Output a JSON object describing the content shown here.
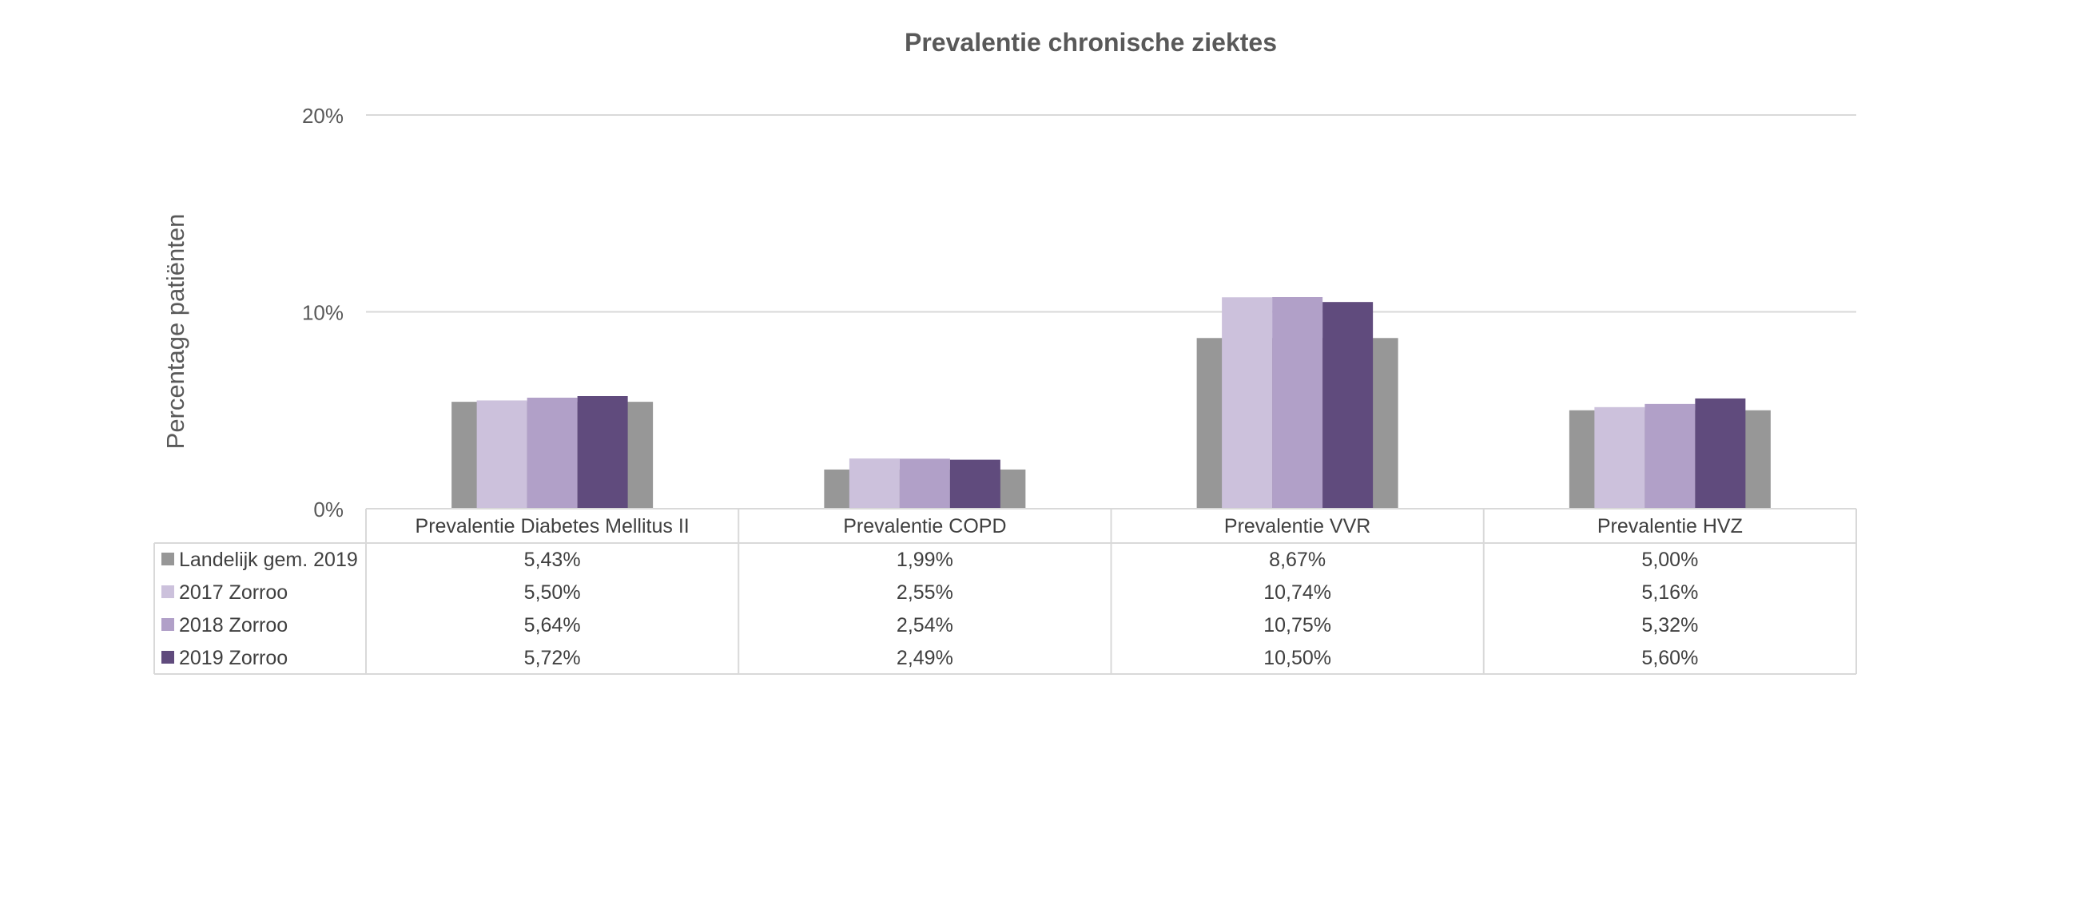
{
  "chart_data": {
    "type": "bar",
    "title": "Prevalentie chronische ziektes",
    "xlabel": "",
    "ylabel": "Percentage patiënten",
    "ylim": [
      0,
      20
    ],
    "yticks": [
      {
        "value": 0,
        "label": "0%"
      },
      {
        "value": 10,
        "label": "10%"
      },
      {
        "value": 20,
        "label": "20%"
      }
    ],
    "grid": true,
    "legend": "data-table",
    "categories": [
      "Prevalentie Diabetes Mellitus II",
      "Prevalentie COPD",
      "Prevalentie VVR",
      "Prevalentie HVZ"
    ],
    "series": [
      {
        "name": "Landelijk gem. 2019",
        "color": "#979797",
        "values": [
          5.43,
          1.99,
          8.67,
          5.0
        ],
        "labels": [
          "5,43%",
          "1,99%",
          "8,67%",
          "5,00%"
        ]
      },
      {
        "name": "2017 Zorroo",
        "color": "#ccc1dc",
        "values": [
          5.5,
          2.55,
          10.74,
          5.16
        ],
        "labels": [
          "5,50%",
          "2,55%",
          "10,74%",
          "5,16%"
        ]
      },
      {
        "name": "2018 Zorroo",
        "color": "#b1a0c8",
        "values": [
          5.64,
          2.54,
          10.75,
          5.32
        ],
        "labels": [
          "5,64%",
          "2,54%",
          "10,75%",
          "5,32%"
        ]
      },
      {
        "name": "2019 Zorroo",
        "color": "#604b7d",
        "values": [
          5.72,
          2.49,
          10.5,
          5.6
        ],
        "labels": [
          "5,72%",
          "2,49%",
          "10,50%",
          "5,60%"
        ]
      }
    ]
  }
}
